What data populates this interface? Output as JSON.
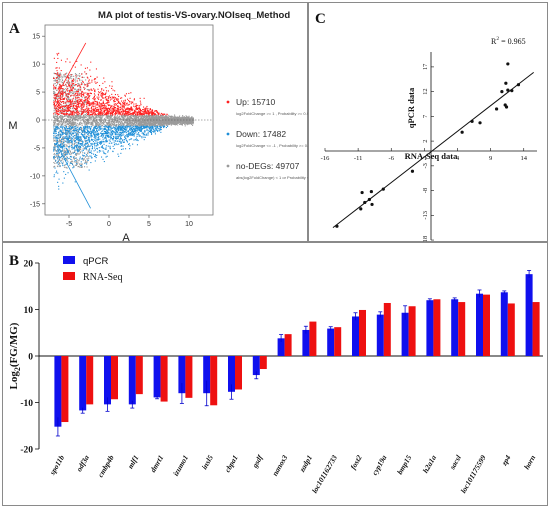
{
  "panels": {
    "a": "A",
    "b": "B",
    "c": "C"
  },
  "colors": {
    "up": "#ff2020",
    "down": "#1f8fd8",
    "nodeg": "#9a9a9a",
    "qpcr": "#1010ee",
    "rnaseq": "#ee1010",
    "error": "#0000cc"
  },
  "chart_data": [
    {
      "type": "scatter",
      "title": "MA plot of testis-VS-ovary.NOIseq_Method",
      "xlabel": "A",
      "ylabel": "M",
      "xlim": [
        -8,
        13
      ],
      "ylim": [
        -17,
        17
      ],
      "xticks": [
        -5,
        0,
        5,
        10
      ],
      "yticks": [
        -15,
        -10,
        -5,
        0,
        5,
        10,
        15
      ],
      "legend_position": "right",
      "series": [
        {
          "name": "Up: 15710",
          "note": "log2FoldChange >= 1 , Probability >= 0.9",
          "color": "#ff2020",
          "count": 15710
        },
        {
          "name": "Down: 17482",
          "note": "log2FoldChange <= -1 , Probability >= 0.9",
          "color": "#1f8fd8",
          "count": 17482
        },
        {
          "name": "no-DEGs: 49707",
          "note": "abs(log2FoldChange) < 1  or Probability < 0.9",
          "color": "#9a9a9a",
          "count": 49707
        }
      ]
    },
    {
      "type": "scatter",
      "xlabel": "RNA-Seq data",
      "ylabel": "qPCR data",
      "annotation": "R",
      "annotation_sup": "2",
      "annotation_value": " = 0.965",
      "xticks": [
        -16,
        -11,
        -6,
        -1,
        4,
        9,
        14
      ],
      "yticks": [
        17,
        12,
        7,
        2,
        -3,
        -8,
        -13,
        -18
      ],
      "xlim": [
        -16,
        16
      ],
      "ylim": [
        -18,
        20
      ],
      "points": [
        {
          "x": -14.2,
          "y": -15.2
        },
        {
          "x": -10.6,
          "y": -11.7
        },
        {
          "x": -10.4,
          "y": -8.4
        },
        {
          "x": -10.0,
          "y": -10.4
        },
        {
          "x": -9.3,
          "y": -9.8
        },
        {
          "x": -9.0,
          "y": -8.2
        },
        {
          "x": -8.9,
          "y": -10.8
        },
        {
          "x": -7.2,
          "y": -7.7
        },
        {
          "x": -2.8,
          "y": -4.1
        },
        {
          "x": 4.7,
          "y": 3.8
        },
        {
          "x": 7.4,
          "y": 5.7
        },
        {
          "x": 6.2,
          "y": 6.0
        },
        {
          "x": 9.9,
          "y": 8.5
        },
        {
          "x": 11.4,
          "y": 8.9
        },
        {
          "x": 11.2,
          "y": 9.3
        },
        {
          "x": 10.7,
          "y": 12.0
        },
        {
          "x": 12.2,
          "y": 12.2
        },
        {
          "x": 11.6,
          "y": 12.3
        },
        {
          "x": 13.2,
          "y": 13.4
        },
        {
          "x": 11.3,
          "y": 13.7
        },
        {
          "x": 11.6,
          "y": 17.6
        }
      ]
    },
    {
      "type": "bar",
      "ylabel": "Log2(FG/MG)",
      "ylim": [
        -20,
        20
      ],
      "yticks": [
        20,
        10,
        0,
        -10,
        -20
      ],
      "legend_position": "top-left",
      "categories": [
        "spo11b",
        "odf3a",
        "cmbp4b",
        "mlf1",
        "dmrt1",
        "izumo1",
        "insl5",
        "cbpa1",
        "gsdf",
        "nanos3",
        "zadp1",
        "loc101162733",
        "fost2",
        "cyp19a",
        "bmp15",
        "h2a1a",
        "sacsl",
        "loc101175599",
        "zp4",
        "horn"
      ],
      "series": [
        {
          "name": "qPCR",
          "color": "#1010ee",
          "values": [
            -15.2,
            -11.7,
            -10.4,
            -10.4,
            -8.9,
            -8.0,
            -8.0,
            -7.7,
            -4.1,
            3.8,
            5.6,
            5.9,
            8.5,
            8.9,
            9.3,
            12.0,
            12.2,
            13.4,
            13.7,
            17.6
          ],
          "errors": [
            2.0,
            0.6,
            1.5,
            0.8,
            0.3,
            2.2,
            2.7,
            1.6,
            0.8,
            0.8,
            0.8,
            0.4,
            0.8,
            0.6,
            1.5,
            0.3,
            0.3,
            0.8,
            0.3,
            0.8
          ]
        },
        {
          "name": "RNA-Seq",
          "color": "#ee1010",
          "values": [
            -14.2,
            -10.4,
            -9.3,
            -8.2,
            -9.8,
            -9.0,
            -10.6,
            -7.2,
            -2.8,
            4.7,
            7.4,
            6.2,
            9.9,
            11.4,
            10.7,
            12.2,
            11.6,
            13.2,
            11.3,
            11.6
          ]
        }
      ]
    }
  ]
}
